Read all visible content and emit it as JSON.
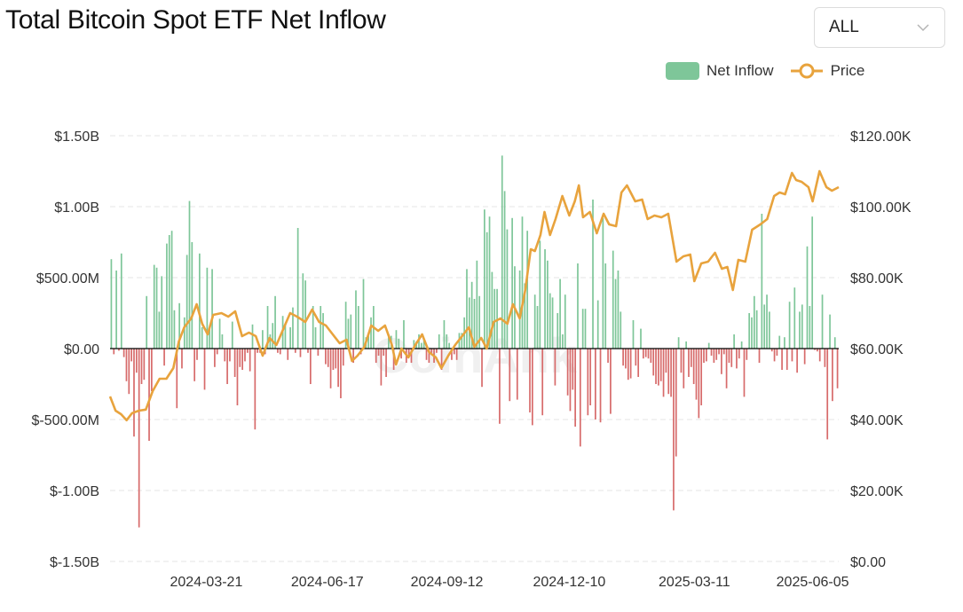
{
  "header": {
    "title": "Total Bitcoin Spot ETF Net Inflow"
  },
  "range_select": {
    "value": "ALL"
  },
  "legend": {
    "inflow_label": "Net Inflow",
    "price_label": "Price"
  },
  "colors": {
    "inflow_pos": "#7ec699",
    "inflow_neg": "#d76b6b",
    "price": "#e8a33d",
    "grid": "#e6e6e6",
    "zero": "#000000"
  },
  "chart_data": {
    "type": "bar+line",
    "title": "Total Bitcoin Spot ETF Net Inflow",
    "x_tick_labels": [
      "2024-03-21",
      "2024-06-17",
      "2024-09-12",
      "2024-12-10",
      "2025-03-11",
      "2025-06-05"
    ],
    "y_left": {
      "ticks": [
        "$1.50B",
        "$1.00B",
        "$500.00M",
        "$0.00",
        "$-500.00M",
        "$-1.00B",
        "$-1.50B"
      ],
      "ylim": [
        -1500,
        1500
      ],
      "unit": "USD millions"
    },
    "y_right": {
      "ticks": [
        "$120.00K",
        "$100.00K",
        "$80.00K",
        "$60.00K",
        "$40.00K",
        "$20.00K",
        "$0.00"
      ],
      "ylim": [
        0,
        120
      ],
      "unit": "USD thousands"
    },
    "grid": true,
    "legend_position": "top-right",
    "watermark": "CoinAnk",
    "series": [
      {
        "name": "Net Inflow",
        "kind": "bar",
        "values": [
          630,
          -40,
          550,
          -15,
          670,
          -60,
          -230,
          -320,
          -90,
          -620,
          -170,
          -1260,
          -250,
          -220,
          370,
          -650,
          -300,
          590,
          570,
          260,
          510,
          -120,
          740,
          800,
          830,
          270,
          -420,
          320,
          -140,
          220,
          660,
          1040,
          750,
          -230,
          -80,
          670,
          150,
          -290,
          570,
          150,
          560,
          -130,
          -40,
          210,
          100,
          -90,
          -250,
          -90,
          190,
          -200,
          -400,
          -130,
          -150,
          -90,
          -30,
          -160,
          170,
          -570,
          -30,
          -30,
          130,
          -40,
          300,
          100,
          180,
          370,
          -30,
          -40,
          230,
          170,
          -80,
          150,
          290,
          -30,
          850,
          -60,
          530,
          480,
          -30,
          -250,
          300,
          150,
          -50,
          300,
          250,
          -110,
          -130,
          -280,
          -150,
          -140,
          -270,
          -350,
          -120,
          330,
          210,
          240,
          -100,
          410,
          300,
          -40,
          490,
          80,
          100,
          220,
          300,
          -100,
          -50,
          -260,
          -50,
          -200,
          100,
          90,
          -150,
          130,
          70,
          -70,
          200,
          -100,
          -60,
          -100,
          60,
          50,
          100,
          40,
          70,
          -80,
          -100,
          -30,
          -100,
          -30,
          100,
          -150,
          200,
          100,
          40,
          -80,
          -40,
          -80,
          110,
          110,
          220,
          560,
          360,
          470,
          350,
          620,
          370,
          -270,
          980,
          820,
          930,
          540,
          420,
          420,
          -530,
          1360,
          1110,
          840,
          -370,
          920,
          580,
          -360,
          550,
          930,
          460,
          830,
          -450,
          -540,
          380,
          300,
          760,
          -470,
          700,
          620,
          390,
          360,
          -260,
          250,
          490,
          100,
          380,
          -330,
          -440,
          -290,
          -550,
          600,
          -690,
          280,
          280,
          -470,
          -400,
          1050,
          -500,
          340,
          -520,
          920,
          600,
          -100,
          -460,
          690,
          490,
          550,
          260,
          -120,
          -140,
          -220,
          -210,
          200,
          -120,
          -200,
          140,
          -70,
          -60,
          -70,
          -100,
          -190,
          -250,
          -260,
          -230,
          -340,
          -170,
          -320,
          -340,
          -1140,
          -760,
          80,
          -170,
          -280,
          50,
          -200,
          -130,
          -250,
          -360,
          -490,
          -400,
          -100,
          -90,
          40,
          -50,
          -100,
          -80,
          -40,
          -180,
          -40,
          -280,
          -100,
          -130,
          100,
          -140,
          -70,
          50,
          -340,
          -80,
          250,
          220,
          370,
          270,
          -100,
          950,
          310,
          380,
          260,
          -20,
          -90,
          -50,
          90,
          -150,
          80,
          -150,
          330,
          -90,
          430,
          -170,
          260,
          310,
          -110,
          720,
          300,
          930,
          -10,
          -20,
          -90,
          380,
          -130,
          -640,
          240,
          -370,
          80,
          -280
        ],
        "note": "Daily values (USD millions), approximately 2024-01-11 to 2025-06-10"
      },
      {
        "name": "Price",
        "kind": "line",
        "points": [
          [
            "2024-01-11",
            46.5
          ],
          [
            "2024-01-15",
            42.5
          ],
          [
            "2024-01-19",
            41.5
          ],
          [
            "2024-01-23",
            39.8
          ],
          [
            "2024-01-27",
            41.8
          ],
          [
            "2024-02-01",
            42.5
          ],
          [
            "2024-02-06",
            42.8
          ],
          [
            "2024-02-11",
            48.0
          ],
          [
            "2024-02-16",
            51.5
          ],
          [
            "2024-02-21",
            51.5
          ],
          [
            "2024-02-26",
            54.5
          ],
          [
            "2024-03-01",
            62.0
          ],
          [
            "2024-03-05",
            66.0
          ],
          [
            "2024-03-10",
            68.5
          ],
          [
            "2024-03-14",
            72.5
          ],
          [
            "2024-03-18",
            67.0
          ],
          [
            "2024-03-22",
            64.0
          ],
          [
            "2024-03-26",
            69.5
          ],
          [
            "2024-04-01",
            70.0
          ],
          [
            "2024-04-06",
            69.0
          ],
          [
            "2024-04-11",
            70.5
          ],
          [
            "2024-04-16",
            63.5
          ],
          [
            "2024-04-21",
            64.5
          ],
          [
            "2024-04-26",
            63.5
          ],
          [
            "2024-05-01",
            58.0
          ],
          [
            "2024-05-06",
            63.0
          ],
          [
            "2024-05-11",
            61.0
          ],
          [
            "2024-05-16",
            65.5
          ],
          [
            "2024-05-21",
            70.0
          ],
          [
            "2024-05-26",
            69.0
          ],
          [
            "2024-06-01",
            67.5
          ],
          [
            "2024-06-06",
            71.0
          ],
          [
            "2024-06-11",
            67.5
          ],
          [
            "2024-06-16",
            66.5
          ],
          [
            "2024-06-21",
            64.0
          ],
          [
            "2024-06-26",
            61.5
          ],
          [
            "2024-07-01",
            62.5
          ],
          [
            "2024-07-05",
            56.5
          ],
          [
            "2024-07-09",
            58.0
          ],
          [
            "2024-07-14",
            60.5
          ],
          [
            "2024-07-19",
            66.5
          ],
          [
            "2024-07-24",
            65.0
          ],
          [
            "2024-07-29",
            66.5
          ],
          [
            "2024-08-03",
            61.0
          ],
          [
            "2024-08-06",
            55.5
          ],
          [
            "2024-08-10",
            60.0
          ],
          [
            "2024-08-15",
            57.5
          ],
          [
            "2024-08-20",
            61.0
          ],
          [
            "2024-08-25",
            64.0
          ],
          [
            "2024-08-30",
            59.0
          ],
          [
            "2024-09-04",
            57.5
          ],
          [
            "2024-09-08",
            54.5
          ],
          [
            "2024-09-13",
            58.0
          ],
          [
            "2024-09-18",
            61.0
          ],
          [
            "2024-09-23",
            63.5
          ],
          [
            "2024-09-28",
            66.0
          ],
          [
            "2024-10-02",
            60.5
          ],
          [
            "2024-10-07",
            63.0
          ],
          [
            "2024-10-11",
            60.0
          ],
          [
            "2024-10-16",
            67.5
          ],
          [
            "2024-10-21",
            68.5
          ],
          [
            "2024-10-26",
            67.0
          ],
          [
            "2024-10-30",
            72.5
          ],
          [
            "2024-11-04",
            68.5
          ],
          [
            "2024-11-08",
            76.5
          ],
          [
            "2024-11-12",
            88.0
          ],
          [
            "2024-11-15",
            87.5
          ],
          [
            "2024-11-19",
            92.0
          ],
          [
            "2024-11-22",
            98.5
          ],
          [
            "2024-11-26",
            92.0
          ],
          [
            "2024-11-30",
            96.5
          ],
          [
            "2024-12-05",
            103.0
          ],
          [
            "2024-12-10",
            97.5
          ],
          [
            "2024-12-14",
            101.5
          ],
          [
            "2024-12-17",
            106.0
          ],
          [
            "2024-12-20",
            97.0
          ],
          [
            "2024-12-25",
            98.5
          ],
          [
            "2024-12-30",
            92.5
          ],
          [
            "2025-01-04",
            98.0
          ],
          [
            "2025-01-08",
            95.0
          ],
          [
            "2025-01-13",
            94.5
          ],
          [
            "2025-01-17",
            104.0
          ],
          [
            "2025-01-21",
            106.0
          ],
          [
            "2025-01-27",
            101.5
          ],
          [
            "2025-02-01",
            102.0
          ],
          [
            "2025-02-05",
            96.5
          ],
          [
            "2025-02-10",
            97.5
          ],
          [
            "2025-02-15",
            97.0
          ],
          [
            "2025-02-20",
            98.0
          ],
          [
            "2025-02-26",
            84.5
          ],
          [
            "2025-03-03",
            86.0
          ],
          [
            "2025-03-08",
            86.5
          ],
          [
            "2025-03-11",
            79.0
          ],
          [
            "2025-03-16",
            84.0
          ],
          [
            "2025-03-21",
            84.5
          ],
          [
            "2025-03-26",
            87.0
          ],
          [
            "2025-03-31",
            82.5
          ],
          [
            "2025-04-04",
            83.0
          ],
          [
            "2025-04-08",
            76.5
          ],
          [
            "2025-04-12",
            85.0
          ],
          [
            "2025-04-17",
            84.5
          ],
          [
            "2025-04-22",
            93.5
          ],
          [
            "2025-04-28",
            95.0
          ],
          [
            "2025-05-03",
            96.5
          ],
          [
            "2025-05-08",
            103.0
          ],
          [
            "2025-05-12",
            104.0
          ],
          [
            "2025-05-16",
            103.5
          ],
          [
            "2025-05-21",
            109.5
          ],
          [
            "2025-05-24",
            107.5
          ],
          [
            "2025-05-28",
            107.0
          ],
          [
            "2025-06-02",
            105.5
          ],
          [
            "2025-06-05",
            101.5
          ],
          [
            "2025-06-10",
            110.0
          ],
          [
            "2025-06-15",
            105.5
          ],
          [
            "2025-06-19",
            104.5
          ],
          [
            "2025-06-24",
            105.5
          ]
        ]
      }
    ]
  }
}
